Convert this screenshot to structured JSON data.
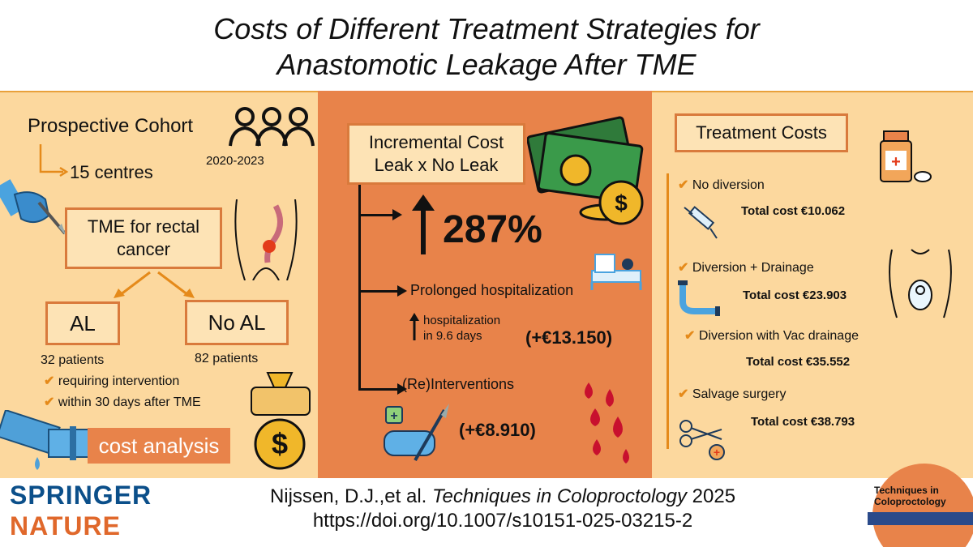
{
  "title": {
    "line1": "Costs of Different Treatment Strategies for",
    "line2": "Anastomotic Leakage After TME"
  },
  "left": {
    "cohort": "Prospective Cohort",
    "centres": "15 centres",
    "years": "2020-2023",
    "tme": "TME for rectal cancer",
    "al": "AL",
    "no_al": "No AL",
    "al_patients": "32 patients",
    "no_al_patients": "82 patients",
    "criteria": [
      "requiring intervention",
      "within 30 days after TME"
    ],
    "cost_analysis": "cost analysis"
  },
  "middle": {
    "incremental_line1": "Incremental Cost",
    "incremental_line2": "Leak x No Leak",
    "percent": "287%",
    "prolonged": "Prolonged hospitalization",
    "hosp_line1": "hospitalization",
    "hosp_line2": "in 9.6 days",
    "hosp_cost": "(+€13.150)",
    "reinterventions": "(Re)Interventions",
    "reint_cost": "(+€8.910)"
  },
  "right": {
    "heading": "Treatment Costs",
    "items": [
      {
        "label": "No diversion",
        "total": "Total cost €10.062"
      },
      {
        "label": "Diversion + Drainage",
        "total": "Total cost €23.903"
      },
      {
        "label": "Diversion with Vac drainage",
        "total": "Total cost €35.552"
      },
      {
        "label": "Salvage surgery",
        "total": "Total cost €38.793"
      }
    ]
  },
  "footer": {
    "publisher_line1": "SPRINGER",
    "publisher_line2": "NATURE",
    "citation_authors": "Nijssen, D.J.,et al.",
    "citation_journal": "Techniques in Coloproctology",
    "citation_year": "2025",
    "doi": "https://doi.org/10.1007/s10151-025-03215-2",
    "journal_logo_line1": "Techniques in",
    "journal_logo_line2": "Coloproctology"
  },
  "colors": {
    "panel_light": "#fcd89e",
    "panel_dark": "#e8834a",
    "box_border": "#d97a3c",
    "check": "#e58a1a",
    "springer_blue": "#0b4f8a",
    "nature_orange": "#e0682b"
  }
}
